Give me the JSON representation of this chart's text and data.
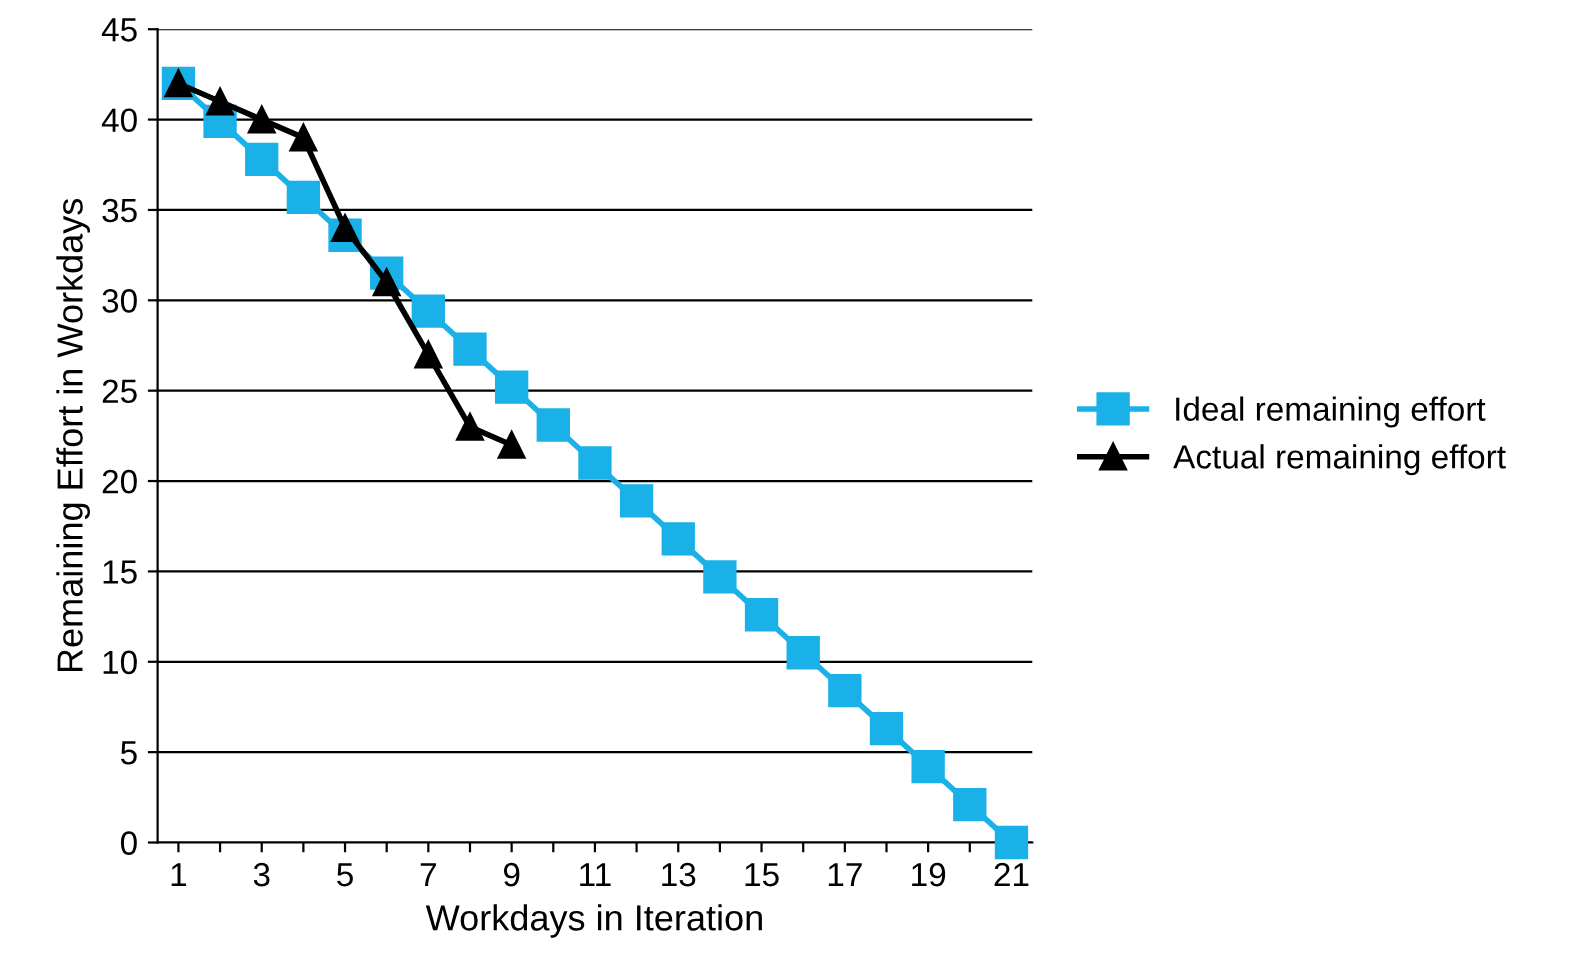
{
  "chart_data": {
    "type": "line",
    "xlabel": "Workdays in Iteration",
    "ylabel": "Remaining Effort in Workdays",
    "x": [
      1,
      2,
      3,
      4,
      5,
      6,
      7,
      8,
      9,
      10,
      11,
      12,
      13,
      14,
      15,
      16,
      17,
      18,
      19,
      20,
      21
    ],
    "series": [
      {
        "name": "Ideal remaining effort",
        "color": "#1ab0e8",
        "marker": "square",
        "values": [
          42,
          39.9,
          37.8,
          35.7,
          33.6,
          31.5,
          29.4,
          27.3,
          25.2,
          23.1,
          21,
          18.9,
          16.8,
          14.7,
          12.6,
          10.5,
          8.4,
          6.3,
          4.2,
          2.1,
          0
        ]
      },
      {
        "name": "Actual remaining effort",
        "color": "#000000",
        "marker": "triangle",
        "x": [
          1,
          2,
          3,
          4,
          5,
          6,
          7,
          8,
          9
        ],
        "values": [
          42,
          41,
          40,
          39,
          34,
          31,
          27,
          23,
          22
        ]
      }
    ],
    "xlim": [
      0.5,
      21.5
    ],
    "xticks": [
      1,
      {
        "value": 2,
        "label": null
      },
      3,
      {
        "value": 4,
        "label": null
      },
      5,
      {
        "value": 6,
        "label": null
      },
      7,
      {
        "value": 8,
        "label": null
      },
      9,
      {
        "value": 10,
        "label": null
      },
      11,
      {
        "value": 12,
        "label": null
      },
      13,
      {
        "value": 14,
        "label": null
      },
      15,
      {
        "value": 16,
        "label": null
      },
      17,
      {
        "value": 18,
        "label": null
      },
      19,
      {
        "value": 20,
        "label": null
      },
      21
    ],
    "ylim": [
      0,
      45
    ],
    "yticks": [
      0,
      5,
      10,
      15,
      20,
      25,
      30,
      35,
      40,
      45
    ],
    "grid": "y",
    "legend": "right",
    "line_style": "solid"
  }
}
